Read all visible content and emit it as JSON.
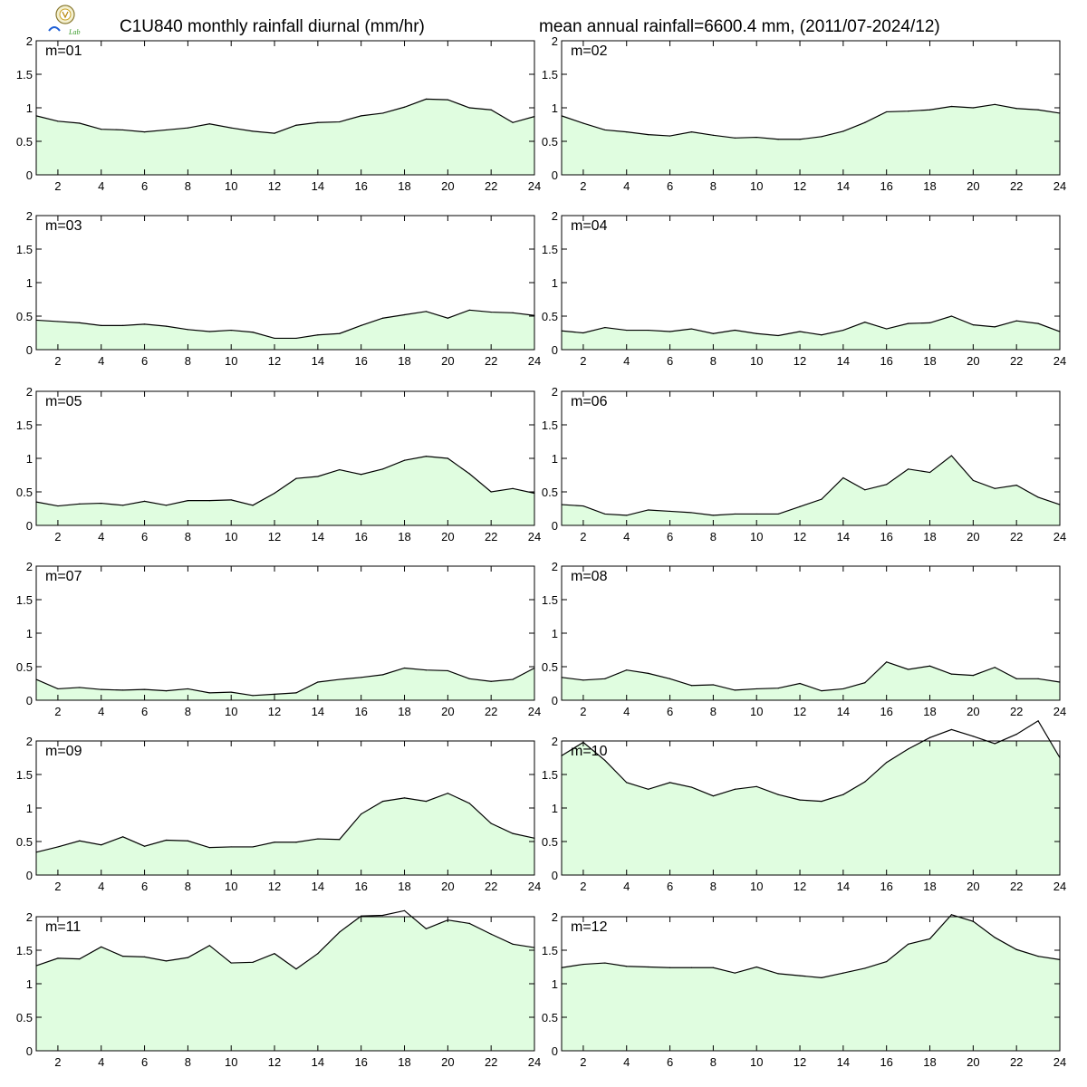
{
  "header": {
    "title_left": "C1U840 monthly rainfall diurnal (mm/hr)",
    "title_right": "mean annual rainfall=6600.4 mm, (2011/07-2024/12)",
    "logo_text": "Lab"
  },
  "colors": {
    "fill": "#e0fde0",
    "line": "#000000",
    "axis": "#000000"
  },
  "chart_data": [
    {
      "type": "area",
      "label": "m=01",
      "x": [
        1,
        2,
        3,
        4,
        5,
        6,
        7,
        8,
        9,
        10,
        11,
        12,
        13,
        14,
        15,
        16,
        17,
        18,
        19,
        20,
        21,
        22,
        23,
        24
      ],
      "values": [
        0.88,
        0.8,
        0.77,
        0.68,
        0.67,
        0.64,
        0.67,
        0.7,
        0.76,
        0.7,
        0.65,
        0.62,
        0.74,
        0.78,
        0.79,
        0.88,
        0.92,
        1.01,
        1.13,
        1.12,
        1.0,
        0.97,
        0.78,
        0.87
      ],
      "ylim": [
        0,
        2
      ],
      "xlim": [
        1,
        24
      ],
      "yticks": [
        0,
        0.5,
        1,
        1.5,
        2
      ],
      "xticks": [
        2,
        4,
        6,
        8,
        10,
        12,
        14,
        16,
        18,
        20,
        22,
        24
      ]
    },
    {
      "type": "area",
      "label": "m=02",
      "x": [
        1,
        2,
        3,
        4,
        5,
        6,
        7,
        8,
        9,
        10,
        11,
        12,
        13,
        14,
        15,
        16,
        17,
        18,
        19,
        20,
        21,
        22,
        23,
        24
      ],
      "values": [
        0.88,
        0.77,
        0.67,
        0.64,
        0.6,
        0.58,
        0.64,
        0.59,
        0.55,
        0.56,
        0.53,
        0.53,
        0.57,
        0.65,
        0.78,
        0.94,
        0.95,
        0.97,
        1.02,
        1.0,
        1.05,
        0.99,
        0.97,
        0.92
      ],
      "ylim": [
        0,
        2
      ],
      "xlim": [
        1,
        24
      ],
      "yticks": [
        0,
        0.5,
        1,
        1.5,
        2
      ],
      "xticks": [
        2,
        4,
        6,
        8,
        10,
        12,
        14,
        16,
        18,
        20,
        22,
        24
      ]
    },
    {
      "type": "area",
      "label": "m=03",
      "x": [
        1,
        2,
        3,
        4,
        5,
        6,
        7,
        8,
        9,
        10,
        11,
        12,
        13,
        14,
        15,
        16,
        17,
        18,
        19,
        20,
        21,
        22,
        23,
        24
      ],
      "values": [
        0.44,
        0.42,
        0.4,
        0.36,
        0.36,
        0.38,
        0.35,
        0.3,
        0.27,
        0.29,
        0.26,
        0.17,
        0.17,
        0.22,
        0.24,
        0.36,
        0.47,
        0.52,
        0.57,
        0.47,
        0.59,
        0.56,
        0.55,
        0.51
      ],
      "ylim": [
        0,
        2
      ],
      "xlim": [
        1,
        24
      ],
      "yticks": [
        0,
        0.5,
        1,
        1.5,
        2
      ],
      "xticks": [
        2,
        4,
        6,
        8,
        10,
        12,
        14,
        16,
        18,
        20,
        22,
        24
      ]
    },
    {
      "type": "area",
      "label": "m=04",
      "x": [
        1,
        2,
        3,
        4,
        5,
        6,
        7,
        8,
        9,
        10,
        11,
        12,
        13,
        14,
        15,
        16,
        17,
        18,
        19,
        20,
        21,
        22,
        23,
        24
      ],
      "values": [
        0.28,
        0.25,
        0.33,
        0.29,
        0.29,
        0.27,
        0.31,
        0.24,
        0.29,
        0.24,
        0.21,
        0.27,
        0.22,
        0.29,
        0.41,
        0.31,
        0.39,
        0.4,
        0.5,
        0.37,
        0.34,
        0.43,
        0.39,
        0.27
      ],
      "ylim": [
        0,
        2
      ],
      "xlim": [
        1,
        24
      ],
      "yticks": [
        0,
        0.5,
        1,
        1.5,
        2
      ],
      "xticks": [
        2,
        4,
        6,
        8,
        10,
        12,
        14,
        16,
        18,
        20,
        22,
        24
      ]
    },
    {
      "type": "area",
      "label": "m=05",
      "x": [
        1,
        2,
        3,
        4,
        5,
        6,
        7,
        8,
        9,
        10,
        11,
        12,
        13,
        14,
        15,
        16,
        17,
        18,
        19,
        20,
        21,
        22,
        23,
        24
      ],
      "values": [
        0.35,
        0.29,
        0.32,
        0.33,
        0.3,
        0.36,
        0.3,
        0.37,
        0.37,
        0.38,
        0.3,
        0.48,
        0.7,
        0.73,
        0.83,
        0.76,
        0.84,
        0.97,
        1.03,
        1.0,
        0.77,
        0.5,
        0.55,
        0.48
      ],
      "ylim": [
        0,
        2
      ],
      "xlim": [
        1,
        24
      ],
      "yticks": [
        0,
        0.5,
        1,
        1.5,
        2
      ],
      "xticks": [
        2,
        4,
        6,
        8,
        10,
        12,
        14,
        16,
        18,
        20,
        22,
        24
      ]
    },
    {
      "type": "area",
      "label": "m=06",
      "x": [
        1,
        2,
        3,
        4,
        5,
        6,
        7,
        8,
        9,
        10,
        11,
        12,
        13,
        14,
        15,
        16,
        17,
        18,
        19,
        20,
        21,
        22,
        23,
        24
      ],
      "values": [
        0.31,
        0.29,
        0.17,
        0.15,
        0.23,
        0.21,
        0.19,
        0.15,
        0.17,
        0.17,
        0.17,
        0.28,
        0.39,
        0.71,
        0.53,
        0.61,
        0.84,
        0.79,
        1.04,
        0.67,
        0.55,
        0.6,
        0.42,
        0.31
      ],
      "ylim": [
        0,
        2
      ],
      "xlim": [
        1,
        24
      ],
      "yticks": [
        0,
        0.5,
        1,
        1.5,
        2
      ],
      "xticks": [
        2,
        4,
        6,
        8,
        10,
        12,
        14,
        16,
        18,
        20,
        22,
        24
      ]
    },
    {
      "type": "area",
      "label": "m=07",
      "x": [
        1,
        2,
        3,
        4,
        5,
        6,
        7,
        8,
        9,
        10,
        11,
        12,
        13,
        14,
        15,
        16,
        17,
        18,
        19,
        20,
        21,
        22,
        23,
        24
      ],
      "values": [
        0.31,
        0.17,
        0.19,
        0.16,
        0.15,
        0.16,
        0.14,
        0.17,
        0.11,
        0.12,
        0.07,
        0.09,
        0.11,
        0.27,
        0.31,
        0.34,
        0.38,
        0.48,
        0.45,
        0.44,
        0.32,
        0.28,
        0.31,
        0.48
      ],
      "ylim": [
        0,
        2
      ],
      "xlim": [
        1,
        24
      ],
      "yticks": [
        0,
        0.5,
        1,
        1.5,
        2
      ],
      "xticks": [
        2,
        4,
        6,
        8,
        10,
        12,
        14,
        16,
        18,
        20,
        22,
        24
      ]
    },
    {
      "type": "area",
      "label": "m=08",
      "x": [
        1,
        2,
        3,
        4,
        5,
        6,
        7,
        8,
        9,
        10,
        11,
        12,
        13,
        14,
        15,
        16,
        17,
        18,
        19,
        20,
        21,
        22,
        23,
        24
      ],
      "values": [
        0.34,
        0.3,
        0.32,
        0.45,
        0.4,
        0.32,
        0.22,
        0.23,
        0.15,
        0.17,
        0.18,
        0.25,
        0.14,
        0.17,
        0.26,
        0.57,
        0.46,
        0.51,
        0.39,
        0.37,
        0.49,
        0.32,
        0.32,
        0.27
      ],
      "ylim": [
        0,
        2
      ],
      "xlim": [
        1,
        24
      ],
      "yticks": [
        0,
        0.5,
        1,
        1.5,
        2
      ],
      "xticks": [
        2,
        4,
        6,
        8,
        10,
        12,
        14,
        16,
        18,
        20,
        22,
        24
      ]
    },
    {
      "type": "area",
      "label": "m=09",
      "x": [
        1,
        2,
        3,
        4,
        5,
        6,
        7,
        8,
        9,
        10,
        11,
        12,
        13,
        14,
        15,
        16,
        17,
        18,
        19,
        20,
        21,
        22,
        23,
        24
      ],
      "values": [
        0.34,
        0.42,
        0.51,
        0.45,
        0.57,
        0.43,
        0.52,
        0.51,
        0.41,
        0.42,
        0.42,
        0.49,
        0.49,
        0.54,
        0.53,
        0.91,
        1.1,
        1.15,
        1.1,
        1.22,
        1.07,
        0.77,
        0.62,
        0.55
      ],
      "ylim": [
        0,
        2
      ],
      "xlim": [
        1,
        24
      ],
      "yticks": [
        0,
        0.5,
        1,
        1.5,
        2
      ],
      "xticks": [
        2,
        4,
        6,
        8,
        10,
        12,
        14,
        16,
        18,
        20,
        22,
        24
      ]
    },
    {
      "type": "area",
      "label": "m=10",
      "x": [
        1,
        2,
        3,
        4,
        5,
        6,
        7,
        8,
        9,
        10,
        11,
        12,
        13,
        14,
        15,
        16,
        17,
        18,
        19,
        20,
        21,
        22,
        23,
        24
      ],
      "values": [
        1.78,
        1.98,
        1.71,
        1.38,
        1.28,
        1.38,
        1.31,
        1.18,
        1.28,
        1.32,
        1.2,
        1.12,
        1.1,
        1.2,
        1.39,
        1.68,
        1.88,
        2.05,
        2.17,
        2.07,
        1.96,
        2.1,
        2.3,
        1.75
      ],
      "ylim": [
        0,
        2
      ],
      "xlim": [
        1,
        24
      ],
      "yticks": [
        0,
        0.5,
        1,
        1.5,
        2
      ],
      "xticks": [
        2,
        4,
        6,
        8,
        10,
        12,
        14,
        16,
        18,
        20,
        22,
        24
      ]
    },
    {
      "type": "area",
      "label": "m=11",
      "x": [
        1,
        2,
        3,
        4,
        5,
        6,
        7,
        8,
        9,
        10,
        11,
        12,
        13,
        14,
        15,
        16,
        17,
        18,
        19,
        20,
        21,
        22,
        23,
        24
      ],
      "values": [
        1.27,
        1.38,
        1.37,
        1.55,
        1.41,
        1.4,
        1.34,
        1.39,
        1.57,
        1.31,
        1.32,
        1.45,
        1.22,
        1.45,
        1.77,
        2.01,
        2.02,
        2.09,
        1.82,
        1.95,
        1.9,
        1.74,
        1.59,
        1.54
      ],
      "ylim": [
        0,
        2
      ],
      "xlim": [
        1,
        24
      ],
      "yticks": [
        0,
        0.5,
        1,
        1.5,
        2
      ],
      "xticks": [
        2,
        4,
        6,
        8,
        10,
        12,
        14,
        16,
        18,
        20,
        22,
        24
      ]
    },
    {
      "type": "area",
      "label": "m=12",
      "x": [
        1,
        2,
        3,
        4,
        5,
        6,
        7,
        8,
        9,
        10,
        11,
        12,
        13,
        14,
        15,
        16,
        17,
        18,
        19,
        20,
        21,
        22,
        23,
        24
      ],
      "values": [
        1.24,
        1.29,
        1.31,
        1.26,
        1.25,
        1.24,
        1.24,
        1.24,
        1.16,
        1.25,
        1.15,
        1.12,
        1.09,
        1.16,
        1.23,
        1.33,
        1.59,
        1.67,
        2.03,
        1.93,
        1.69,
        1.51,
        1.41,
        1.36
      ],
      "ylim": [
        0,
        2
      ],
      "xlim": [
        1,
        24
      ],
      "yticks": [
        0,
        0.5,
        1,
        1.5,
        2
      ],
      "xticks": [
        2,
        4,
        6,
        8,
        10,
        12,
        14,
        16,
        18,
        20,
        22,
        24
      ]
    }
  ]
}
